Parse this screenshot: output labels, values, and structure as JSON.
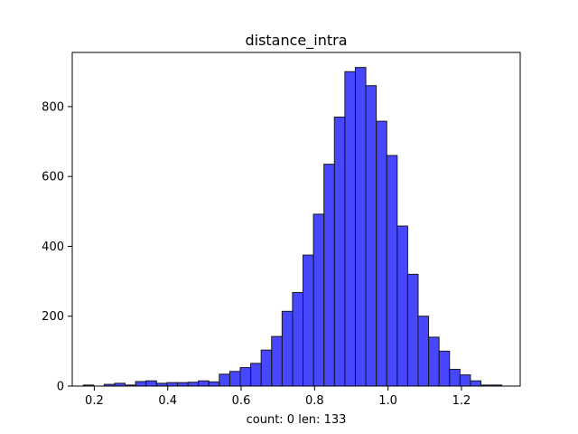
{
  "chart_data": {
    "type": "bar",
    "title": "distance_intra",
    "xlabel": "count: 0  len: 133",
    "ylabel": "",
    "xlim": [
      0.14,
      1.36
    ],
    "ylim": [
      0,
      955
    ],
    "bin_start": 0.17,
    "bin_width": 0.0285,
    "values": [
      3,
      0,
      5,
      8,
      3,
      13,
      15,
      8,
      10,
      10,
      11,
      15,
      12,
      34,
      42,
      53,
      65,
      103,
      142,
      214,
      268,
      375,
      492,
      635,
      770,
      900,
      912,
      860,
      758,
      660,
      458,
      320,
      200,
      140,
      100,
      48,
      32,
      15,
      3,
      3
    ],
    "x_ticks": [
      0.2,
      0.4,
      0.6,
      0.8,
      1.0,
      1.2
    ],
    "x_tick_labels": [
      "0.2",
      "0.4",
      "0.6",
      "0.8",
      "1.0",
      "1.2"
    ],
    "y_ticks": [
      0,
      200,
      400,
      600,
      800
    ],
    "y_tick_labels": [
      "0",
      "200",
      "400",
      "600",
      "800"
    ],
    "bar_color": "#0000ff",
    "bar_edge_color": "#1a1a1a",
    "grid": false,
    "legend": "none"
  }
}
